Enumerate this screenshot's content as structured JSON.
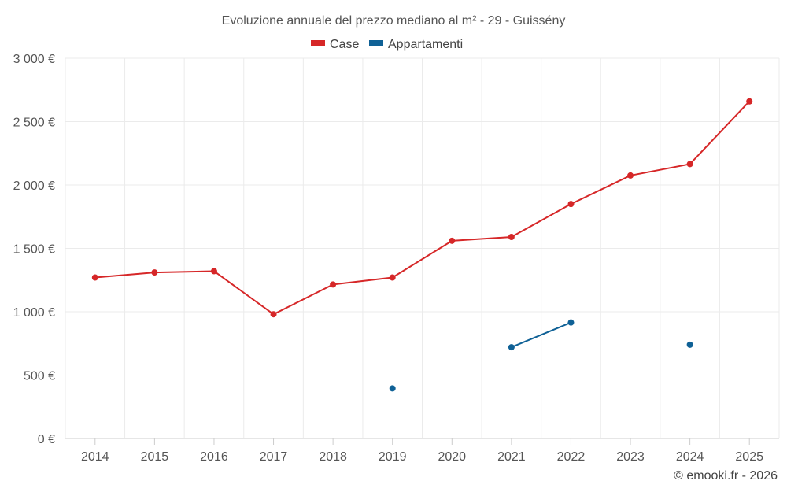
{
  "chart_data": {
    "type": "line",
    "title": "Evoluzione annuale del prezzo mediano al m² - 29 - Guissény",
    "categories": [
      "2014",
      "2015",
      "2016",
      "2017",
      "2018",
      "2019",
      "2020",
      "2021",
      "2022",
      "2023",
      "2024",
      "2025"
    ],
    "y_tick_labels": [
      "0 €",
      "500 €",
      "1 000 €",
      "1 500 €",
      "2 000 €",
      "2 500 €",
      "3 000 €"
    ],
    "y_ticks": [
      0,
      500,
      1000,
      1500,
      2000,
      2500,
      3000
    ],
    "ylim": [
      0,
      3000
    ],
    "grid": true,
    "legend_position": "top-center",
    "series": [
      {
        "name": "Case",
        "color": "#d62728",
        "values": [
          1270,
          1310,
          1320,
          980,
          1215,
          1270,
          1560,
          1590,
          1850,
          2075,
          2165,
          2660
        ]
      },
      {
        "name": "Appartamenti",
        "color": "#0f6196",
        "values": [
          null,
          null,
          null,
          null,
          null,
          395,
          null,
          720,
          915,
          null,
          740,
          null
        ]
      }
    ]
  },
  "credit": "© emooki.fr - 2026"
}
